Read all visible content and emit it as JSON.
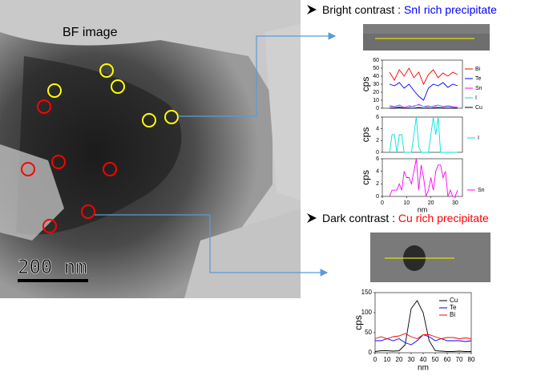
{
  "image": {
    "label": "BF image",
    "scale_bar": "200 nm"
  },
  "bright": {
    "heading": "Bright contrast :",
    "highlight": "SnI rich  precipitate"
  },
  "dark": {
    "heading": "Dark contrast :",
    "highlight": "Cu rich precipitate"
  },
  "chart_data": [
    {
      "type": "line",
      "ylabel": "cps",
      "xlim": [
        0,
        33
      ],
      "ylim": [
        0,
        60
      ],
      "yticks": [
        0,
        10,
        20,
        30,
        40,
        50,
        60
      ],
      "x": [
        3,
        5,
        7,
        9,
        11,
        13,
        15,
        17,
        19,
        21,
        23,
        25,
        27,
        29,
        31
      ],
      "series": [
        {
          "name": "Bi",
          "color": "#ff0000",
          "values": [
            45,
            35,
            48,
            40,
            50,
            38,
            45,
            30,
            42,
            48,
            38,
            44,
            40,
            45,
            42
          ]
        },
        {
          "name": "Te",
          "color": "#0000ff",
          "values": [
            30,
            28,
            32,
            25,
            30,
            22,
            15,
            10,
            25,
            30,
            28,
            32,
            26,
            30,
            28
          ]
        },
        {
          "name": "Sn",
          "color": "#ff00ff",
          "values": [
            3,
            2,
            4,
            1,
            3,
            2,
            5,
            2,
            3,
            1,
            4,
            2,
            3,
            2,
            1
          ]
        },
        {
          "name": "I",
          "color": "#00e0e0",
          "values": [
            2,
            1,
            2,
            0,
            1,
            3,
            4,
            2,
            1,
            3,
            4,
            1,
            2,
            1,
            0
          ]
        },
        {
          "name": "Cu",
          "color": "#000000",
          "values": [
            0,
            0,
            1,
            0,
            0,
            0,
            1,
            0,
            0,
            0,
            1,
            0,
            0,
            0,
            0
          ]
        }
      ]
    },
    {
      "type": "line",
      "ylabel": "cps",
      "xlim": [
        0,
        33
      ],
      "ylim": [
        0,
        6
      ],
      "yticks": [
        0,
        2,
        4,
        6
      ],
      "x": [
        3,
        4,
        5,
        6,
        7,
        8,
        9,
        10,
        11,
        12,
        13,
        14,
        15,
        16,
        17,
        18,
        19,
        20,
        21,
        22,
        23,
        24,
        25,
        26,
        27,
        28,
        29,
        30,
        31
      ],
      "series": [
        {
          "name": "I",
          "color": "#00e0e0",
          "values": [
            0,
            3,
            3,
            0,
            3,
            3,
            0,
            0,
            0,
            0,
            3,
            6,
            1,
            0,
            0,
            0,
            0,
            3,
            6,
            3,
            6,
            0,
            0,
            0,
            0,
            0,
            0,
            0,
            0
          ]
        }
      ]
    },
    {
      "type": "line",
      "ylabel": "cps",
      "xlabel": "nm",
      "xlim": [
        0,
        33
      ],
      "xticks": [
        0,
        10,
        20,
        30
      ],
      "ylim": [
        0,
        6
      ],
      "yticks": [
        0,
        2,
        4,
        6
      ],
      "x": [
        3,
        4,
        5,
        6,
        7,
        8,
        9,
        10,
        11,
        12,
        13,
        14,
        15,
        16,
        17,
        18,
        19,
        20,
        21,
        22,
        23,
        24,
        25,
        26,
        27,
        28,
        29,
        30,
        31
      ],
      "series": [
        {
          "name": "Sn",
          "color": "#ff00ff",
          "values": [
            0,
            1,
            1,
            1,
            2,
            1,
            4,
            3,
            3,
            2,
            4,
            6,
            1,
            5,
            3,
            0,
            1,
            3,
            1,
            4,
            5,
            5,
            3,
            4,
            0,
            1,
            0,
            0,
            1
          ]
        }
      ]
    },
    {
      "type": "line",
      "ylabel": "cps",
      "xlabel": "nm",
      "xlim": [
        0,
        80
      ],
      "xticks": [
        0,
        10,
        20,
        30,
        40,
        50,
        60,
        70,
        80
      ],
      "ylim": [
        0,
        150
      ],
      "yticks": [
        0,
        50,
        100,
        150
      ],
      "x": [
        0,
        5,
        10,
        15,
        20,
        25,
        30,
        35,
        40,
        45,
        50,
        55,
        60,
        65,
        70,
        75,
        80
      ],
      "series": [
        {
          "name": "Cu",
          "color": "#000000",
          "values": [
            3,
            5,
            5,
            4,
            5,
            20,
            110,
            130,
            100,
            30,
            5,
            4,
            3,
            3,
            4,
            3,
            3
          ]
        },
        {
          "name": "Te",
          "color": "#0000ff",
          "values": [
            30,
            30,
            35,
            30,
            35,
            25,
            20,
            30,
            45,
            40,
            30,
            35,
            30,
            30,
            30,
            28,
            30
          ]
        },
        {
          "name": "Bi",
          "color": "#ff0000",
          "values": [
            35,
            40,
            35,
            40,
            42,
            48,
            40,
            35,
            45,
            45,
            40,
            35,
            38,
            38,
            35,
            37,
            35
          ]
        }
      ]
    }
  ]
}
